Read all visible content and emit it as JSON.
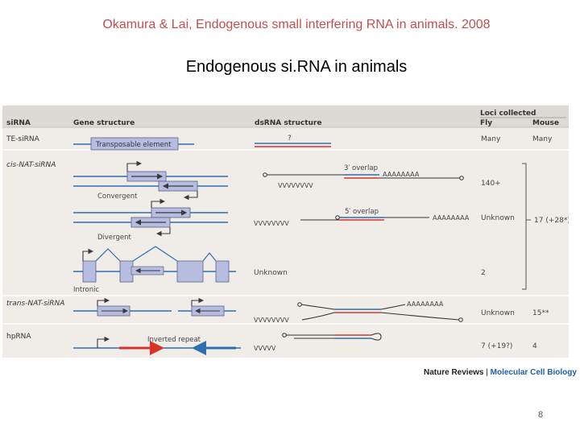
{
  "slide": {
    "citation": "Okamura & Lai, Endogenous small interfering RNA in animals. 2008",
    "title": "Endogenous si.RNA in animals",
    "page_number": "8"
  },
  "figure": {
    "header": {
      "col_sirna": "siRNA",
      "col_gene": "Gene structure",
      "col_dsrna": "dsRNA structure",
      "col_loci": "Loci collected",
      "col_fly": "Fly",
      "col_mouse": "Mouse"
    },
    "rows": {
      "te": {
        "label": "TE-siRNA",
        "element": "Transposable element",
        "dsrna": "?",
        "fly": "Many",
        "mouse": "Many"
      },
      "cis": {
        "label": "cis-NAT-siRNA",
        "convergent": "Convergent",
        "divergent": "Divergent",
        "intronic": "Intronic",
        "overlap3": "3′ overlap",
        "overlap5": "5′ overlap",
        "polyA_1": "AAAAAAAA",
        "polyA_2": "AAAAAAAA",
        "squig_1": "VVVVVVVV",
        "squig_2": "VVVVVVVV",
        "unknown_label": "Unknown",
        "fly_conv": "140+",
        "fly_div": "Unknown",
        "fly_intr": "2",
        "mouse_group": "17 (+28*)"
      },
      "trans": {
        "label": "trans-NAT-siRNA",
        "polyA": "AAAAAAAA",
        "squig": "VVVVVVVV",
        "fly": "Unknown",
        "mouse": "15**"
      },
      "hp": {
        "label": "hpRNA",
        "element": "Inverted repeat",
        "squig": "VVVVV",
        "fly": "7 (+19?)",
        "mouse": "4"
      }
    },
    "colors": {
      "panel": "#f0ede9",
      "header": "#ddd9d4",
      "blue": "#2e6fb0",
      "red": "#d9342b",
      "box": "#b7bde0"
    }
  },
  "credit": {
    "journal": "Nature Reviews",
    "sep": " | ",
    "subjournal": "Molecular Cell Biology"
  }
}
